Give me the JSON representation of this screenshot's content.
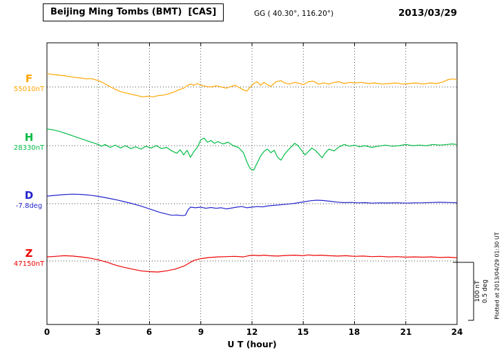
{
  "header": {
    "title": "Beijing Ming Tombs (BMT)  [CAS]",
    "coords": "GG ( 40.30°, 116.20°)",
    "date": "2013/03/29"
  },
  "footer": {
    "xlabel": "U T (hour)"
  },
  "side": {
    "scale_nt_label": "100 nT",
    "scale_deg_label": "0.5 deg",
    "plotted_at": "Plotted at 2013/04/29 01:30 UT"
  },
  "colors": {
    "F": "#FFA500",
    "H": "#00BB44",
    "D": "#2222CC",
    "Z": "#EE0000",
    "axis": "#000000"
  },
  "chart_data": {
    "type": "line",
    "title": "Beijing Ming Tombs (BMT) [CAS] magnetogram, 2013/03/29",
    "xlabel": "U T (hour)",
    "x_range_hours": [
      0,
      24
    ],
    "x_tick_labels": [
      "0",
      "3",
      "6",
      "9",
      "12",
      "15",
      "18",
      "21",
      "24"
    ],
    "x_gridline_hours": [
      3,
      6,
      9,
      12,
      15,
      18,
      21
    ],
    "grid": "dotted vertical gridlines every 3 h; dotted horizontal baseline per component",
    "legend_position": "left margin, one colored letter per trace",
    "scale": {
      "nT_per_bar": 100,
      "deg_per_bar": 0.5
    },
    "series": [
      {
        "id": "F",
        "label": "F",
        "baseline_label": "55010nT",
        "baseline_value": 55010,
        "unit": "nT",
        "color": "#FFA500",
        "points": [
          [
            0,
            23
          ],
          [
            0.5,
            21
          ],
          [
            1,
            19.5
          ],
          [
            1.5,
            17
          ],
          [
            2,
            15.5
          ],
          [
            2.3,
            14
          ],
          [
            2.6,
            14.5
          ],
          [
            3,
            11
          ],
          [
            3.3,
            7
          ],
          [
            3.6,
            2
          ],
          [
            4,
            -4
          ],
          [
            4.3,
            -8
          ],
          [
            4.6,
            -10
          ],
          [
            5,
            -13
          ],
          [
            5.3,
            -15
          ],
          [
            5.6,
            -17
          ],
          [
            5.9,
            -16
          ],
          [
            6.2,
            -17
          ],
          [
            6.5,
            -15
          ],
          [
            6.8,
            -14
          ],
          [
            7.1,
            -12
          ],
          [
            7.4,
            -9
          ],
          [
            7.7,
            -5
          ],
          [
            8,
            -2
          ],
          [
            8.2,
            2
          ],
          [
            8.4,
            5
          ],
          [
            8.6,
            3
          ],
          [
            8.8,
            6
          ],
          [
            9,
            3
          ],
          [
            9.3,
            1
          ],
          [
            9.6,
            0
          ],
          [
            9.9,
            2
          ],
          [
            10.2,
            0
          ],
          [
            10.5,
            -2
          ],
          [
            10.8,
            1
          ],
          [
            11,
            3
          ],
          [
            11.2,
            0
          ],
          [
            11.5,
            -5
          ],
          [
            11.7,
            -7
          ],
          [
            11.9,
            0
          ],
          [
            12.1,
            6
          ],
          [
            12.3,
            9
          ],
          [
            12.5,
            3
          ],
          [
            12.7,
            8
          ],
          [
            12.9,
            4
          ],
          [
            13.1,
            1
          ],
          [
            13.4,
            9
          ],
          [
            13.7,
            11
          ],
          [
            13.9,
            7
          ],
          [
            14.2,
            5
          ],
          [
            14.5,
            8
          ],
          [
            14.8,
            6
          ],
          [
            15,
            4
          ],
          [
            15.3,
            9
          ],
          [
            15.6,
            10
          ],
          [
            15.9,
            5
          ],
          [
            16.2,
            7
          ],
          [
            16.5,
            5
          ],
          [
            16.8,
            8
          ],
          [
            17.1,
            9
          ],
          [
            17.4,
            6
          ],
          [
            17.7,
            8
          ],
          [
            18,
            7
          ],
          [
            18.4,
            8
          ],
          [
            18.8,
            6
          ],
          [
            19.2,
            7
          ],
          [
            19.6,
            5
          ],
          [
            20,
            6
          ],
          [
            20.4,
            7
          ],
          [
            20.8,
            5
          ],
          [
            21.2,
            6
          ],
          [
            21.6,
            7
          ],
          [
            22,
            5
          ],
          [
            22.4,
            7
          ],
          [
            22.8,
            6
          ],
          [
            23.2,
            9
          ],
          [
            23.5,
            13
          ],
          [
            23.8,
            14
          ],
          [
            24,
            12
          ]
        ]
      },
      {
        "id": "H",
        "label": "H",
        "baseline_label": "28330nT",
        "baseline_value": 28330,
        "unit": "nT",
        "color": "#00BB44",
        "points": [
          [
            0,
            29
          ],
          [
            0.4,
            27
          ],
          [
            0.8,
            24
          ],
          [
            1.2,
            20
          ],
          [
            1.6,
            16
          ],
          [
            2,
            12
          ],
          [
            2.4,
            8
          ],
          [
            2.8,
            4
          ],
          [
            3,
            2
          ],
          [
            3.2,
            -1
          ],
          [
            3.4,
            2
          ],
          [
            3.7,
            -3
          ],
          [
            4,
            1
          ],
          [
            4.3,
            -4
          ],
          [
            4.6,
            0
          ],
          [
            4.9,
            -5
          ],
          [
            5.2,
            -2
          ],
          [
            5.5,
            -6
          ],
          [
            5.8,
            -1
          ],
          [
            6.1,
            -4
          ],
          [
            6.4,
            0
          ],
          [
            6.7,
            -5
          ],
          [
            7,
            -3
          ],
          [
            7.3,
            -9
          ],
          [
            7.6,
            -13
          ],
          [
            7.8,
            -7
          ],
          [
            8,
            -16
          ],
          [
            8.2,
            -8
          ],
          [
            8.4,
            -20
          ],
          [
            8.6,
            -10
          ],
          [
            8.8,
            -3
          ],
          [
            9,
            10
          ],
          [
            9.2,
            13
          ],
          [
            9.4,
            6
          ],
          [
            9.6,
            9
          ],
          [
            9.8,
            4
          ],
          [
            10,
            7
          ],
          [
            10.3,
            3
          ],
          [
            10.6,
            6
          ],
          [
            10.9,
            0
          ],
          [
            11.2,
            -3
          ],
          [
            11.5,
            -12
          ],
          [
            11.7,
            -28
          ],
          [
            11.9,
            -40
          ],
          [
            12.1,
            -42
          ],
          [
            12.3,
            -30
          ],
          [
            12.5,
            -18
          ],
          [
            12.7,
            -10
          ],
          [
            12.9,
            -6
          ],
          [
            13.1,
            -12
          ],
          [
            13.3,
            -8
          ],
          [
            13.5,
            -20
          ],
          [
            13.7,
            -25
          ],
          [
            13.9,
            -15
          ],
          [
            14.1,
            -8
          ],
          [
            14.3,
            -2
          ],
          [
            14.5,
            4
          ],
          [
            14.7,
            0
          ],
          [
            14.9,
            -8
          ],
          [
            15.1,
            -16
          ],
          [
            15.3,
            -10
          ],
          [
            15.5,
            -4
          ],
          [
            15.7,
            -8
          ],
          [
            15.9,
            -14
          ],
          [
            16.1,
            -21
          ],
          [
            16.3,
            -12
          ],
          [
            16.5,
            -6
          ],
          [
            16.8,
            -9
          ],
          [
            17.1,
            -2
          ],
          [
            17.4,
            2
          ],
          [
            17.7,
            -1
          ],
          [
            18,
            1
          ],
          [
            18.3,
            -2
          ],
          [
            18.6,
            0
          ],
          [
            19,
            -3
          ],
          [
            19.4,
            -1
          ],
          [
            19.8,
            1
          ],
          [
            20.2,
            -1
          ],
          [
            20.6,
            0
          ],
          [
            21,
            2
          ],
          [
            21.4,
            0
          ],
          [
            21.8,
            1
          ],
          [
            22.2,
            0
          ],
          [
            22.6,
            2
          ],
          [
            23,
            1
          ],
          [
            23.4,
            2
          ],
          [
            23.7,
            3
          ],
          [
            24,
            2
          ]
        ]
      },
      {
        "id": "D",
        "label": "D",
        "baseline_label": "-7.8deg",
        "baseline_value": -7.8,
        "unit": "deg",
        "color": "#2222CC",
        "points": [
          [
            0,
            0.065
          ],
          [
            0.5,
            0.072
          ],
          [
            1,
            0.078
          ],
          [
            1.5,
            0.082
          ],
          [
            2,
            0.08
          ],
          [
            2.5,
            0.073
          ],
          [
            3,
            0.063
          ],
          [
            3.5,
            0.05
          ],
          [
            4,
            0.035
          ],
          [
            4.5,
            0.018
          ],
          [
            5,
            0
          ],
          [
            5.5,
            -0.02
          ],
          [
            6,
            -0.045
          ],
          [
            6.3,
            -0.06
          ],
          [
            6.6,
            -0.075
          ],
          [
            7,
            -0.09
          ],
          [
            7.3,
            -0.1
          ],
          [
            7.6,
            -0.098
          ],
          [
            7.9,
            -0.103
          ],
          [
            8.1,
            -0.1
          ],
          [
            8.25,
            -0.055
          ],
          [
            8.4,
            -0.03
          ],
          [
            8.7,
            -0.035
          ],
          [
            9,
            -0.03
          ],
          [
            9.3,
            -0.04
          ],
          [
            9.6,
            -0.033
          ],
          [
            9.9,
            -0.04
          ],
          [
            10.2,
            -0.035
          ],
          [
            10.5,
            -0.045
          ],
          [
            10.8,
            -0.038
          ],
          [
            11.1,
            -0.03
          ],
          [
            11.4,
            -0.025
          ],
          [
            11.7,
            -0.035
          ],
          [
            12,
            -0.03
          ],
          [
            12.3,
            -0.025
          ],
          [
            12.6,
            -0.028
          ],
          [
            12.9,
            -0.02
          ],
          [
            13.2,
            -0.015
          ],
          [
            13.5,
            -0.012
          ],
          [
            13.8,
            -0.008
          ],
          [
            14.1,
            -0.004
          ],
          [
            14.5,
            0.003
          ],
          [
            15,
            0.015
          ],
          [
            15.4,
            0.025
          ],
          [
            15.8,
            0.03
          ],
          [
            16.2,
            0.027
          ],
          [
            16.6,
            0.02
          ],
          [
            17,
            0.013
          ],
          [
            17.4,
            0.009
          ],
          [
            17.8,
            0.011
          ],
          [
            18.2,
            0.007
          ],
          [
            18.6,
            0.009
          ],
          [
            19,
            0.005
          ],
          [
            19.5,
            0.007
          ],
          [
            20,
            0.006
          ],
          [
            20.5,
            0.008
          ],
          [
            21,
            0.005
          ],
          [
            21.5,
            0.007
          ],
          [
            22,
            0.008
          ],
          [
            22.5,
            0.01
          ],
          [
            23,
            0.012
          ],
          [
            23.5,
            0.01
          ],
          [
            24,
            0.008
          ]
        ]
      },
      {
        "id": "Z",
        "label": "Z",
        "baseline_label": "47150nT",
        "baseline_value": 47150,
        "unit": "nT",
        "color": "#EE0000",
        "points": [
          [
            0,
            7
          ],
          [
            0.5,
            8
          ],
          [
            1,
            9
          ],
          [
            1.5,
            8.5
          ],
          [
            2,
            7
          ],
          [
            2.5,
            5
          ],
          [
            3,
            2
          ],
          [
            3.5,
            -2
          ],
          [
            4,
            -7
          ],
          [
            4.5,
            -11
          ],
          [
            5,
            -14
          ],
          [
            5.5,
            -17
          ],
          [
            6,
            -18.5
          ],
          [
            6.5,
            -19
          ],
          [
            7,
            -17
          ],
          [
            7.5,
            -14
          ],
          [
            8,
            -9
          ],
          [
            8.3,
            -4
          ],
          [
            8.6,
            1
          ],
          [
            9,
            4
          ],
          [
            9.5,
            6
          ],
          [
            10,
            7
          ],
          [
            10.5,
            7.5
          ],
          [
            11,
            8
          ],
          [
            11.5,
            7
          ],
          [
            11.8,
            9
          ],
          [
            12.1,
            10
          ],
          [
            12.4,
            9
          ],
          [
            12.7,
            10
          ],
          [
            13,
            9
          ],
          [
            13.5,
            8.5
          ],
          [
            14,
            9.5
          ],
          [
            14.5,
            10
          ],
          [
            15,
            9
          ],
          [
            15.3,
            10.5
          ],
          [
            15.6,
            9.5
          ],
          [
            16,
            10
          ],
          [
            16.5,
            9
          ],
          [
            17,
            8.5
          ],
          [
            17.5,
            9
          ],
          [
            18,
            8
          ],
          [
            18.5,
            8.5
          ],
          [
            19,
            7.5
          ],
          [
            19.5,
            8
          ],
          [
            20,
            7
          ],
          [
            20.5,
            7.5
          ],
          [
            21,
            6.5
          ],
          [
            21.5,
            7
          ],
          [
            22,
            6.5
          ],
          [
            22.5,
            7
          ],
          [
            23,
            6
          ],
          [
            23.5,
            6.5
          ],
          [
            24,
            5.5
          ]
        ]
      }
    ]
  }
}
